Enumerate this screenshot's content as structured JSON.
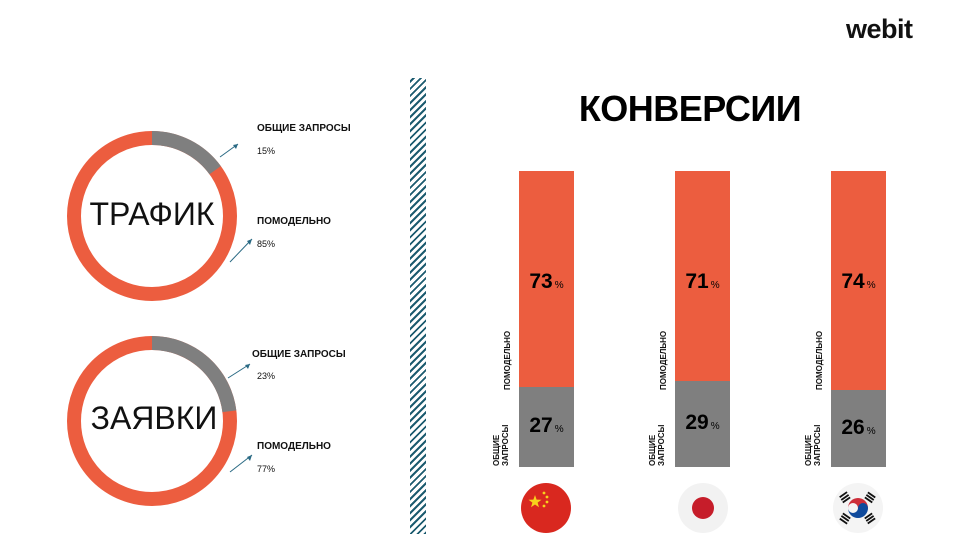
{
  "brand": {
    "logo": "webit"
  },
  "colors": {
    "orange": "#ec5d3f",
    "gray": "#7f7f7f",
    "divider": "#1d5c70"
  },
  "donuts": [
    {
      "label": "ТРАФИК",
      "segments": [
        {
          "name": "ОБЩИЕ ЗАПРОСЫ",
          "value_label": "15%",
          "value": 15
        },
        {
          "name": "ПОМОДЕЛЬНО",
          "value_label": "85%",
          "value": 85
        }
      ]
    },
    {
      "label": "ЗАЯВКИ",
      "segments": [
        {
          "name": "ОБЩИЕ ЗАПРОСЫ",
          "value_label": "23%",
          "value": 23
        },
        {
          "name": "ПОМОДЕЛЬНО",
          "value_label": "77%",
          "value": 77
        }
      ]
    }
  ],
  "conversions": {
    "title": "КОНВЕРСИИ",
    "pct_symbol": "%",
    "top_series": "ПОМОДЕЛЬНО",
    "bottom_series_lines": [
      "ОБЩИЕ",
      "ЗАПРОСЫ"
    ],
    "flags": [
      "china-flag-icon",
      "japan-flag-icon",
      "south-korea-flag-icon"
    ]
  },
  "chart_data": [
    {
      "type": "pie",
      "label": "ТРАФИК",
      "categories": [
        "ОБЩИЕ ЗАПРОСЫ",
        "ПОМОДЕЛЬНО"
      ],
      "values": [
        15,
        85
      ]
    },
    {
      "type": "pie",
      "label": "ЗАЯВКИ",
      "categories": [
        "ОБЩИЕ ЗАПРОСЫ",
        "ПОМОДЕЛЬНО"
      ],
      "values": [
        23,
        77
      ]
    },
    {
      "type": "bar",
      "title": "КОНВЕРСИИ",
      "stacked": true,
      "series": [
        {
          "name": "ПОМОДЕЛЬНО",
          "values": [
            73,
            71,
            74
          ]
        },
        {
          "name": "ОБЩИЕ ЗАПРОСЫ",
          "values": [
            27,
            29,
            26
          ]
        }
      ]
    }
  ]
}
